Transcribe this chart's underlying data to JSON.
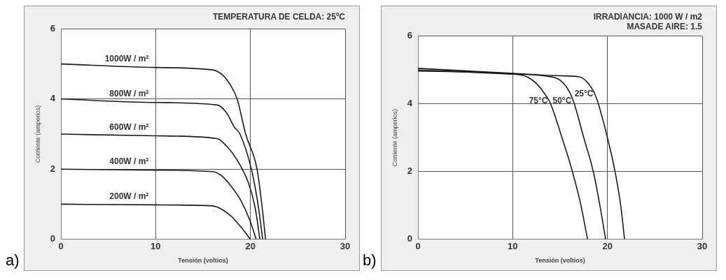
{
  "chart_data": [
    {
      "type": "line",
      "title": "TEMPERATURA DE CELDA: 25ºC",
      "xlabel": "Tensión (voltios)",
      "ylabel": "Corriente (amperios)",
      "annotations": [
        "a)"
      ],
      "xlim": [
        0,
        30
      ],
      "ylim": [
        0,
        6
      ],
      "xticks": [
        0,
        10,
        20,
        30
      ],
      "yticks": [
        0,
        2,
        4,
        6
      ],
      "grid": true,
      "legend": false,
      "series": [
        {
          "name": "1000W / m²",
          "color": "#1a1a1a",
          "x": [
            0,
            10,
            16,
            17,
            18,
            18.6,
            19.5,
            20.7,
            21.2,
            21.6
          ],
          "values": [
            5,
            4.9,
            4.83,
            4.7,
            4.35,
            4,
            3,
            2,
            1,
            0
          ]
        },
        {
          "name": "800W / m²",
          "color": "#1a1a1a",
          "x": [
            0,
            10,
            16.5,
            17.5,
            18.3,
            18.9,
            20.1,
            20.8,
            21.3
          ],
          "values": [
            4,
            3.9,
            3.83,
            3.6,
            3.2,
            3,
            2,
            1,
            0
          ]
        },
        {
          "name": "600W / m²",
          "color": "#1a1a1a",
          "x": [
            0,
            10,
            16.5,
            17.5,
            18.5,
            19.8,
            20.5,
            21
          ],
          "values": [
            3,
            2.95,
            2.87,
            2.65,
            2.3,
            1.6,
            0.9,
            0
          ]
        },
        {
          "name": "400W / m²",
          "color": "#1a1a1a",
          "x": [
            0,
            10,
            16,
            17,
            18,
            19,
            20,
            20.6
          ],
          "values": [
            2,
            1.97,
            1.93,
            1.8,
            1.5,
            1.1,
            0.5,
            0
          ]
        },
        {
          "name": "200W / m²",
          "color": "#1a1a1a",
          "x": [
            0,
            10,
            16,
            17,
            18,
            19,
            20
          ],
          "values": [
            1,
            0.98,
            0.95,
            0.85,
            0.65,
            0.35,
            0
          ]
        }
      ]
    },
    {
      "type": "line",
      "title": "IRRADIANCIA: 1000 W / m2",
      "subtitle": "MASADE AIRE: 1.5",
      "xlabel": "Tensión (voltios)",
      "ylabel": "Corriente (amperios)",
      "annotations": [
        "b)"
      ],
      "xlim": [
        0,
        30
      ],
      "ylim": [
        0,
        6
      ],
      "xticks": [
        0,
        10,
        20,
        30
      ],
      "yticks": [
        0,
        2,
        4,
        6
      ],
      "grid": true,
      "legend": false,
      "series": [
        {
          "name": "75°C",
          "color": "#1a1a1a",
          "x": [
            0,
            10,
            11.5,
            12.5,
            13.5,
            14,
            15.2,
            16.3,
            17.2,
            17.9
          ],
          "values": [
            4.97,
            4.88,
            4.8,
            4.6,
            4.25,
            4,
            3,
            2,
            1,
            0
          ]
        },
        {
          "name": "50°C",
          "color": "#1a1a1a",
          "x": [
            0,
            10,
            13.5,
            15,
            16,
            16.5,
            17.5,
            18.5,
            19.2,
            19.8
          ],
          "values": [
            5,
            4.88,
            4.82,
            4.7,
            4.35,
            4,
            3,
            2,
            1,
            0
          ]
        },
        {
          "name": "25°C",
          "color": "#1a1a1a",
          "x": [
            0,
            10,
            15,
            17,
            18,
            18.8,
            20,
            20.8,
            21.4,
            21.8
          ],
          "values": [
            5.05,
            4.9,
            4.83,
            4.8,
            4.6,
            4.2,
            3,
            2,
            1,
            0
          ]
        }
      ]
    }
  ]
}
